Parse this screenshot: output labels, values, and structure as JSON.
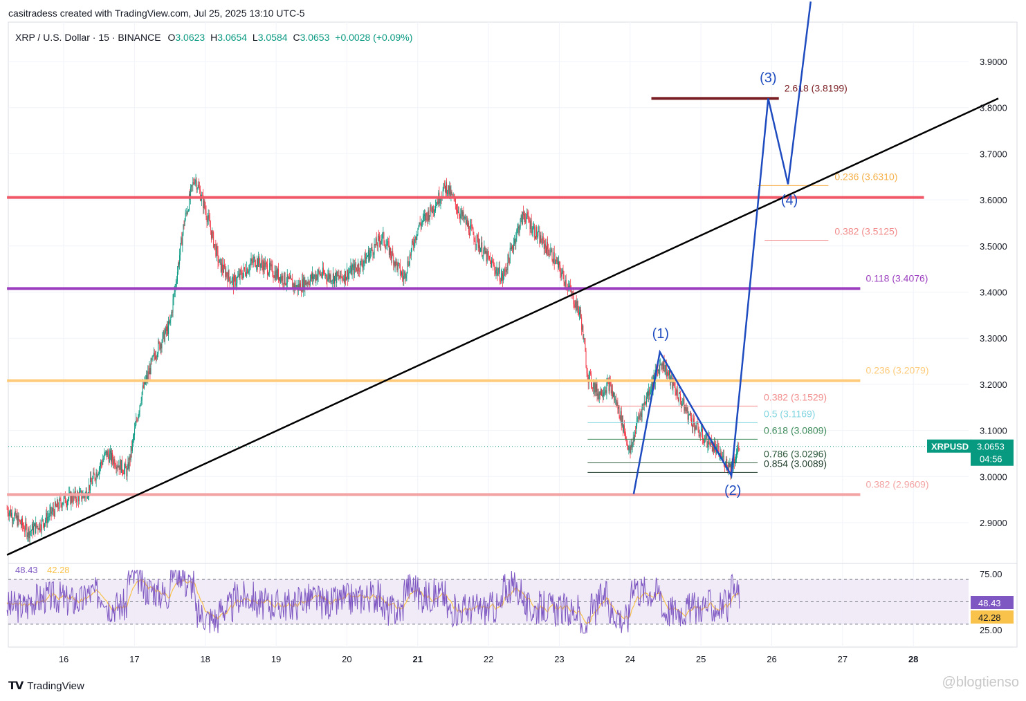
{
  "header": {
    "credit": "casitradess created with TradingView.com, Jul 25, 2025 13:10 UTC-5",
    "symbol": "XRP / U.S. Dollar · 15 · BINANCE",
    "open_label": "O",
    "open": "3.0623",
    "high_label": "H",
    "high": "3.0654",
    "low_label": "L",
    "low": "3.0584",
    "close_label": "C",
    "close": "3.0653",
    "change": "+0.0028 (+0.09%)"
  },
  "footer": {
    "brand": "TradingView",
    "watermark": "@blogtienso"
  },
  "colors": {
    "bull": "#089981",
    "bear": "#f23645",
    "wave": "#1e4bbf",
    "trend": "#000000",
    "red_level": "#f05868",
    "purple_level": "#9c3fbf",
    "orange_level": "#ffcb7a",
    "pink_level": "#f3a3a3",
    "target": "#7a1d22",
    "rsi": "#7e57c2",
    "rsi_ma": "#f9c24a"
  },
  "chart_data": {
    "type": "line",
    "title": "XRP / U.S. Dollar · 15 · BINANCE",
    "x_tick_labels": [
      "16",
      "17",
      "18",
      "19",
      "20",
      "21",
      "22",
      "23",
      "24",
      "25",
      "26",
      "27",
      "28"
    ],
    "y_tick_labels": [
      "3.9000",
      "3.8000",
      "3.7000",
      "3.6000",
      "3.5000",
      "3.4000",
      "3.3000",
      "3.2000",
      "3.1000",
      "3.0000",
      "2.9000"
    ],
    "ylim": [
      2.83,
      4.03
    ],
    "xlim": [
      15.2,
      28.8
    ],
    "price_series": {
      "name": "XRPUSD",
      "x": [
        15.2,
        15.5,
        15.7,
        16.0,
        16.3,
        16.6,
        16.9,
        17.1,
        17.3,
        17.5,
        17.7,
        17.85,
        18.0,
        18.2,
        18.4,
        18.7,
        19.0,
        19.3,
        19.6,
        19.9,
        20.2,
        20.5,
        20.7,
        20.8,
        21.0,
        21.2,
        21.4,
        21.6,
        21.8,
        22.0,
        22.2,
        22.4,
        22.5,
        22.7,
        22.9,
        23.1,
        23.3,
        23.4,
        23.55,
        23.7,
        23.85,
        24.0,
        24.1,
        24.25,
        24.45,
        24.6,
        24.8,
        25.0,
        25.15,
        25.3,
        25.42,
        25.5,
        25.55
      ],
      "y": [
        2.93,
        2.88,
        2.9,
        2.95,
        2.96,
        3.05,
        3.01,
        3.18,
        3.27,
        3.33,
        3.55,
        3.65,
        3.58,
        3.46,
        3.42,
        3.47,
        3.44,
        3.41,
        3.44,
        3.43,
        3.46,
        3.52,
        3.46,
        3.43,
        3.54,
        3.58,
        3.63,
        3.57,
        3.52,
        3.47,
        3.43,
        3.53,
        3.57,
        3.52,
        3.48,
        3.42,
        3.35,
        3.22,
        3.18,
        3.2,
        3.14,
        3.05,
        3.12,
        3.18,
        3.25,
        3.2,
        3.14,
        3.09,
        3.07,
        3.04,
        3.02,
        3.05,
        3.065
      ]
    },
    "last_price": {
      "symbol": "XRPUSD",
      "value": "3.0653",
      "countdown": "04:56"
    },
    "horizontal_levels": [
      {
        "y": 3.6052,
        "color": "#f05868",
        "x_start": 15.2,
        "x_end": 28.15
      },
      {
        "y": 3.4076,
        "color": "#9c3fbf",
        "x_start": 15.2,
        "x_end": 27.25,
        "label": "0.118 (3.4076)"
      },
      {
        "y": 3.2079,
        "color": "#ffcb7a",
        "x_start": 15.2,
        "x_end": 27.25,
        "label": "0.236 (3.2079)"
      },
      {
        "y": 2.9609,
        "color": "#f3a3a3",
        "x_start": 15.2,
        "x_end": 27.25,
        "label": "0.382 (2.9609)"
      },
      {
        "y": 3.8199,
        "color": "#7a1d22",
        "x_start": 24.3,
        "x_end": 26.1,
        "label": "2.618 (3.8199)"
      }
    ],
    "fib_levels": [
      {
        "label": "0.236 (3.6310)",
        "y": 3.631,
        "color": "#f5b14c",
        "x_start": 25.8,
        "x_end": 26.8
      },
      {
        "label": "0.382 (3.5125)",
        "y": 3.5125,
        "color": "#f28b8b",
        "x_start": 25.9,
        "x_end": 26.8
      },
      {
        "label": "0.382 (3.1529)",
        "y": 3.1529,
        "color": "#f28b8b",
        "x_start": 23.4,
        "x_end": 25.8
      },
      {
        "label": "0.5 (3.1169)",
        "y": 3.1169,
        "color": "#80d4e0",
        "x_start": 23.4,
        "x_end": 25.8
      },
      {
        "label": "0.618 (3.0809)",
        "y": 3.0809,
        "color": "#3d8b5a",
        "x_start": 23.4,
        "x_end": 25.8
      },
      {
        "label": "0.786 (3.0296)",
        "y": 3.0296,
        "color": "#2e5a3c",
        "x_start": 23.4,
        "x_end": 25.8
      },
      {
        "label": "0.854 (3.0089)",
        "y": 3.0089,
        "color": "#1f3d2a",
        "x_start": 23.4,
        "x_end": 25.8
      }
    ],
    "trendline": {
      "x": [
        15.2,
        29.2
      ],
      "y": [
        2.83,
        3.82
      ]
    },
    "wave_path": {
      "x": [
        24.05,
        24.42,
        25.43,
        25.95,
        26.23,
        26.55
      ],
      "y": [
        2.962,
        3.27,
        3.002,
        3.82,
        3.634,
        4.03
      ]
    },
    "wave_labels": [
      {
        "text": "(1)",
        "x": 24.43,
        "y": 3.3
      },
      {
        "text": "(2)",
        "x": 25.45,
        "y": 2.96
      },
      {
        "text": "(3)",
        "x": 25.95,
        "y": 3.855
      },
      {
        "text": "(4)",
        "x": 26.25,
        "y": 3.59
      }
    ],
    "rsi": {
      "value": "48.43",
      "ma_value": "42.28",
      "y_tick_labels": [
        "75.00",
        "25.00"
      ],
      "ylim": [
        20,
        80
      ],
      "bands": [
        70,
        50,
        30
      ]
    }
  }
}
